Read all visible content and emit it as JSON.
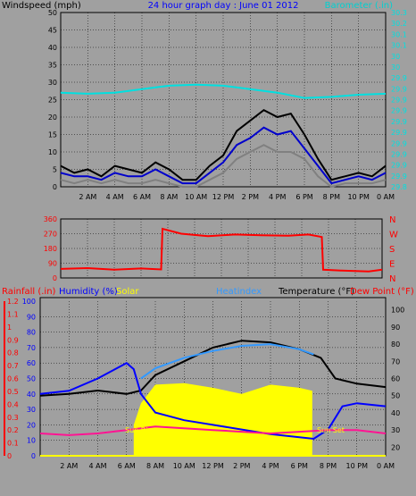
{
  "chart_data": [
    {
      "type": "line",
      "title": "24 hour graph day : June 01 2012",
      "ylabel": "Windspeed (mph)",
      "y2label": "Barometer (.in)",
      "x_ticks": [
        "2 AM",
        "4 AM",
        "6 AM",
        "8 AM",
        "10 AM",
        "12 PM",
        "2 PM",
        "4 PM",
        "6 PM",
        "8 PM",
        "10 PM",
        "0 AM"
      ],
      "ylim": [
        0,
        50
      ],
      "y_ticks": [
        "0",
        "5",
        "10",
        "15",
        "20",
        "25",
        "30",
        "35",
        "40",
        "45",
        "50"
      ],
      "y2lim": [
        29.8,
        30.3
      ],
      "y2_ticks": [
        "29.8",
        "29.9",
        "29.9",
        "29.9",
        "29.9",
        "29.9",
        "29.9",
        "29.9",
        "29.9",
        "29.9",
        "29.9",
        "30",
        "30",
        "30.1",
        "30.1",
        "30.2",
        "30.3"
      ],
      "grid": true,
      "series": [
        {
          "role": "wind-gust",
          "color": "#000000",
          "x": [
            0,
            1,
            2,
            3,
            4,
            5,
            6,
            7,
            8,
            9,
            10,
            11,
            12,
            13,
            14,
            15,
            16,
            17,
            18,
            19,
            20,
            21,
            22,
            23,
            24
          ],
          "y": [
            6,
            4,
            5,
            3,
            6,
            5,
            4,
            7,
            5,
            2,
            2,
            6,
            9,
            16,
            19,
            22,
            20,
            21,
            15,
            8,
            2,
            3,
            4,
            3,
            6
          ]
        },
        {
          "role": "wind-average",
          "color": "#0000cc",
          "x": [
            0,
            1,
            2,
            3,
            4,
            5,
            6,
            7,
            8,
            9,
            10,
            11,
            12,
            13,
            14,
            15,
            16,
            17,
            18,
            19,
            20,
            21,
            22,
            23,
            24
          ],
          "y": [
            4,
            3,
            3,
            2,
            4,
            3,
            3,
            5,
            3,
            1,
            1,
            4,
            7,
            12,
            14,
            17,
            15,
            16,
            11,
            6,
            1,
            2,
            3,
            2,
            4
          ]
        },
        {
          "role": "wind-speed",
          "color": "#808080",
          "x": [
            0,
            1,
            2,
            3,
            4,
            5,
            6,
            7,
            8,
            9,
            10,
            11,
            12,
            13,
            14,
            15,
            16,
            17,
            18,
            19,
            20,
            21,
            22,
            23,
            24
          ],
          "y": [
            2,
            1,
            2,
            1,
            2,
            1,
            1,
            2,
            1,
            0,
            0,
            2,
            4,
            8,
            10,
            12,
            10,
            10,
            8,
            3,
            0,
            1,
            1,
            1,
            2
          ]
        },
        {
          "role": "barometer",
          "axis": "right",
          "color": "#00e0e0",
          "x": [
            0,
            2,
            4,
            6,
            8,
            10,
            12,
            14,
            16,
            18,
            20,
            22,
            24
          ],
          "y": [
            30.07,
            30.067,
            30.07,
            30.08,
            30.09,
            30.093,
            30.09,
            30.08,
            30.07,
            30.055,
            30.058,
            30.064,
            30.067
          ]
        }
      ]
    },
    {
      "type": "scatter",
      "title": "",
      "ylim": [
        0,
        360
      ],
      "y_ticks": [
        "0",
        "90",
        "180",
        "270",
        "360"
      ],
      "y2_ticks": [
        "N",
        "W",
        "S",
        "E",
        "N"
      ],
      "grid": true,
      "series": [
        {
          "role": "wind-direction",
          "color": "#ff0000",
          "x": [
            0,
            2,
            4,
            6,
            7.5,
            7.6,
            9,
            11,
            13,
            15,
            17,
            18.5,
            19.5,
            19.6,
            21,
            23,
            24
          ],
          "y": [
            55,
            60,
            50,
            58,
            52,
            300,
            270,
            255,
            265,
            260,
            258,
            265,
            250,
            50,
            45,
            40,
            50
          ]
        }
      ]
    },
    {
      "type": "line",
      "legend": [
        "Rainfall (.in)",
        "Humidity (%)",
        "Solar",
        "Heatindex",
        "Temperature (°F)",
        "Dew Point (°F)"
      ],
      "ylim": [
        0,
        100
      ],
      "y_ticks": [
        "0",
        "10",
        "20",
        "30",
        "40",
        "50",
        "60",
        "70",
        "80",
        "90",
        "100"
      ],
      "rain_ticks": [
        "0",
        "0.1",
        "0.2",
        "0.3",
        "0.4",
        "0.5",
        "0.6",
        "0.7",
        "0.8",
        "0.9",
        "1",
        "1.1",
        "1.2"
      ],
      "y2lim": [
        15,
        105
      ],
      "y2_ticks": [
        "20",
        "30",
        "40",
        "50",
        "60",
        "70",
        "80",
        "90",
        "100"
      ],
      "annotations": [
        "Sun Rise",
        "Sun Set"
      ],
      "grid": true,
      "series": [
        {
          "role": "solar",
          "color": "#ffff00",
          "x": [
            6.5,
            7,
            8,
            10,
            12,
            14,
            16,
            18,
            18.9
          ],
          "y": [
            20,
            34,
            46,
            47,
            44,
            40,
            46,
            44,
            42
          ]
        },
        {
          "role": "temperature",
          "color": "#000000",
          "x": [
            0,
            2,
            4,
            6,
            7,
            8,
            10,
            12,
            14,
            16,
            18,
            19.5,
            20.5,
            22,
            24
          ],
          "y": [
            50,
            51,
            53,
            51,
            53,
            62,
            70,
            78,
            82,
            81,
            77,
            72,
            60,
            57,
            55
          ]
        },
        {
          "role": "heatindex",
          "color": "#3399ff",
          "x": [
            7,
            8,
            10,
            12,
            14,
            16,
            18,
            19
          ],
          "y": [
            60,
            66,
            72,
            76,
            79,
            80,
            77,
            74
          ]
        },
        {
          "role": "humidity",
          "color": "#0000ff",
          "x": [
            0,
            2,
            4,
            5,
            6,
            6.5,
            7,
            8,
            10,
            12,
            14,
            16,
            18,
            19,
            20,
            21,
            22,
            24
          ],
          "y": [
            40,
            42,
            50,
            55,
            60,
            56,
            40,
            28,
            23,
            20,
            17,
            14,
            12,
            11,
            17,
            32,
            34,
            32
          ]
        },
        {
          "role": "dew-point",
          "color": "#ff1493",
          "x": [
            0,
            2,
            4,
            6,
            7,
            8,
            10,
            12,
            14,
            16,
            18,
            20,
            22,
            24
          ],
          "y": [
            28,
            27,
            28,
            30,
            31,
            32,
            31,
            30,
            29,
            28,
            29,
            30,
            30,
            28
          ]
        }
      ]
    }
  ]
}
